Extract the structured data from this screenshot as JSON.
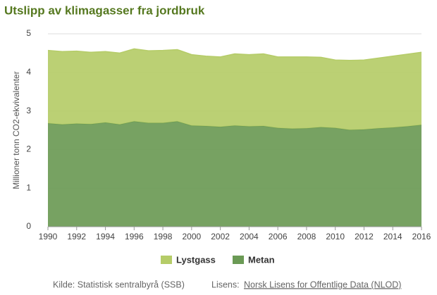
{
  "chart_data": {
    "type": "stacked-area",
    "title": "Utslipp av klimagasser fra jordbruk",
    "y_label": "Millioner tonn CO2-ekvivalenter",
    "x": [
      1990,
      1991,
      1992,
      1993,
      1994,
      1995,
      1996,
      1997,
      1998,
      1999,
      2000,
      2001,
      2002,
      2003,
      2004,
      2005,
      2006,
      2007,
      2008,
      2009,
      2010,
      2011,
      2012,
      2013,
      2014,
      2015,
      2016
    ],
    "series": [
      {
        "name": "Lystgass",
        "color": "#b5cc68",
        "values": [
          1.89,
          1.89,
          1.88,
          1.86,
          1.84,
          1.85,
          1.88,
          1.87,
          1.88,
          1.86,
          1.84,
          1.81,
          1.81,
          1.86,
          1.86,
          1.87,
          1.84,
          1.86,
          1.85,
          1.81,
          1.76,
          1.8,
          1.8,
          1.82,
          1.85,
          1.87,
          1.88
        ]
      },
      {
        "name": "Metan",
        "color": "#6b9a55",
        "values": [
          2.68,
          2.65,
          2.67,
          2.66,
          2.7,
          2.65,
          2.73,
          2.69,
          2.69,
          2.73,
          2.62,
          2.61,
          2.59,
          2.62,
          2.6,
          2.61,
          2.56,
          2.54,
          2.55,
          2.58,
          2.56,
          2.51,
          2.52,
          2.55,
          2.57,
          2.6,
          2.64
        ]
      }
    ],
    "xlim": [
      1990,
      2016
    ],
    "xticks": [
      1990,
      1992,
      1994,
      1996,
      1998,
      2000,
      2002,
      2004,
      2006,
      2008,
      2010,
      2012,
      2014,
      2016
    ],
    "ylim": [
      0,
      5
    ],
    "yticks": [
      0,
      1,
      2,
      3,
      4,
      5
    ],
    "grid": true,
    "source": {
      "label": "Kilde: Statistisk sentralbyrå (SSB)",
      "license_label": "Lisens:",
      "license_link": "Norsk Lisens for Offentlige Data (NLOD)"
    }
  }
}
